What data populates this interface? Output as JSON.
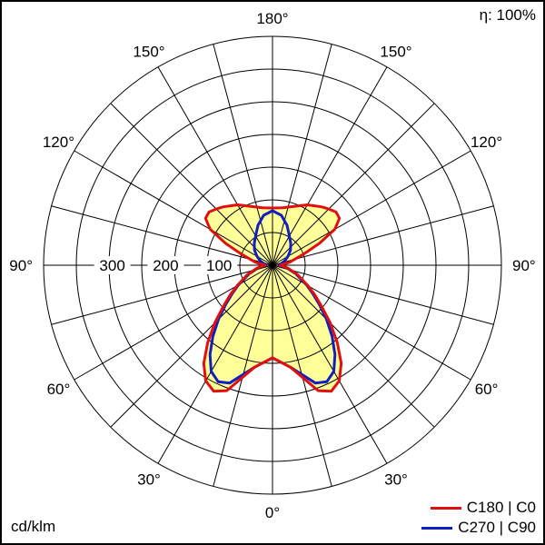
{
  "chart_data": {
    "type": "polar",
    "title": "",
    "efficiency_label": "η: 100%",
    "unit_label": "cd/klm",
    "radial_max": 420,
    "radial_rings": [
      60,
      120,
      180,
      240,
      300,
      360,
      420
    ],
    "radial_tick_labels": [
      {
        "value": 100,
        "text": "100"
      },
      {
        "value": 200,
        "text": "200"
      },
      {
        "value": 300,
        "text": "300"
      }
    ],
    "angle_spokes_step_deg": 15,
    "angle_labels": [
      {
        "angle": 0,
        "side": "center",
        "text": "0°"
      },
      {
        "angle": 30,
        "side": "left",
        "text": "30°"
      },
      {
        "angle": 30,
        "side": "right",
        "text": "30°"
      },
      {
        "angle": 60,
        "side": "left",
        "text": "60°"
      },
      {
        "angle": 60,
        "side": "right",
        "text": "60°"
      },
      {
        "angle": 90,
        "side": "left",
        "text": "90°"
      },
      {
        "angle": 90,
        "side": "right",
        "text": "90°"
      },
      {
        "angle": 120,
        "side": "left",
        "text": "120°"
      },
      {
        "angle": 120,
        "side": "right",
        "text": "120°"
      },
      {
        "angle": 150,
        "side": "left",
        "text": "150°"
      },
      {
        "angle": 150,
        "side": "right",
        "text": "150°"
      },
      {
        "angle": 180,
        "side": "center",
        "text": "180°"
      }
    ],
    "fill_color": "#ffff99",
    "series": [
      {
        "name": "C180 | C0",
        "color": "#e01010",
        "angles": [
          0,
          10,
          20,
          25,
          30,
          35,
          40,
          45,
          50,
          55,
          60,
          70,
          80,
          90,
          100,
          110,
          115,
          120,
          125,
          130,
          135,
          140,
          150,
          160,
          170,
          180
        ],
        "values": [
          170,
          190,
          245,
          255,
          245,
          220,
          185,
          150,
          118,
          95,
          75,
          48,
          28,
          14,
          32,
          62,
          95,
          132,
          150,
          152,
          146,
          140,
          128,
          115,
          107,
          105
        ]
      },
      {
        "name": "C270 | C90",
        "color": "#1020c0",
        "angles": [
          0,
          10,
          20,
          25,
          30,
          35,
          40,
          45,
          50,
          55,
          60,
          70,
          80,
          90,
          100,
          110,
          120,
          130,
          140,
          150,
          160,
          170,
          180
        ],
        "values": [
          170,
          190,
          230,
          236,
          225,
          200,
          170,
          140,
          112,
          90,
          72,
          45,
          26,
          12,
          16,
          24,
          33,
          43,
          52,
          62,
          78,
          93,
          100
        ]
      }
    ]
  }
}
